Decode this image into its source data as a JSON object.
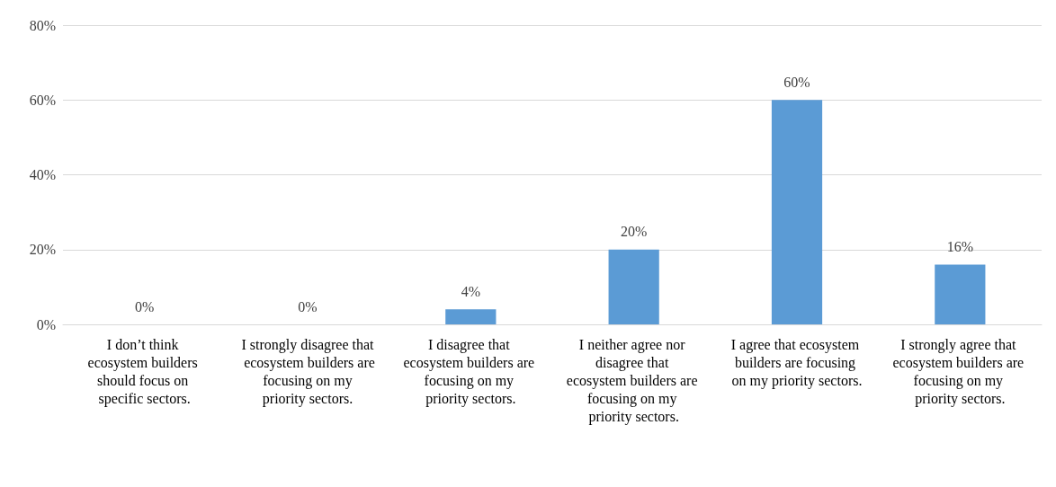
{
  "chart_data": {
    "type": "bar",
    "categories": [
      "I don’t think ecosystem builders should focus on specific sectors.",
      "I strongly disagree that ecosystem builders are focusing on my priority sectors.",
      "I disagree that ecosystem builders are focusing on my priority sectors.",
      "I neither agree nor disagree that ecosystem builders are focusing on my priority sectors.",
      "I agree that ecosystem builders are focusing on my priority sectors.",
      "I strongly agree that ecosystem builders are focusing on my priority sectors."
    ],
    "values": [
      0,
      0,
      4,
      20,
      60,
      16
    ],
    "value_labels": [
      "0%",
      "0%",
      "4%",
      "20%",
      "60%",
      "16%"
    ],
    "color": "#5b9bd5",
    "ylim": [
      0,
      80
    ],
    "yticks": [
      {
        "value": 0,
        "label": "0%"
      },
      {
        "value": 20,
        "label": "20%"
      },
      {
        "value": 40,
        "label": "40%"
      },
      {
        "value": 60,
        "label": "60%"
      },
      {
        "value": 80,
        "label": "80%"
      }
    ],
    "grid": "y"
  }
}
